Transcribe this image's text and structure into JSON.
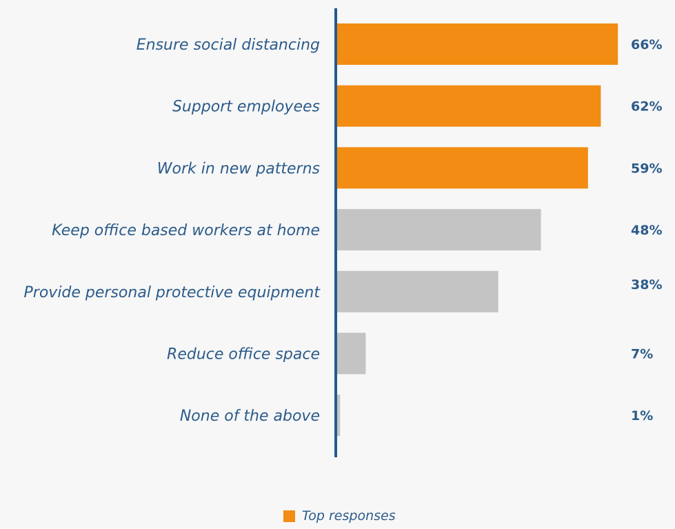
{
  "colors": {
    "top": "#f28c13",
    "other": "#c4c4c4",
    "text": "#2b5b8a",
    "axis": "#245b8b"
  },
  "legend": {
    "label": "Top responses"
  },
  "chart_data": {
    "type": "bar",
    "orientation": "horizontal",
    "categories": [
      "Ensure social distancing",
      "Support employees",
      "Work in new patterns",
      "Keep office based workers at home",
      "Provide personal protective equipment",
      "Reduce office space",
      "None of the above"
    ],
    "values": [
      66,
      62,
      59,
      48,
      38,
      7,
      1
    ],
    "value_labels": [
      "66%",
      "62%",
      "59%",
      "48%",
      "38%",
      "7%",
      "1%"
    ],
    "top_response": [
      true,
      true,
      true,
      false,
      false,
      false,
      false
    ],
    "xlim": [
      0,
      100
    ],
    "title": "",
    "xlabel": "",
    "ylabel": "",
    "grid": false,
    "legend_position": "bottom-center"
  }
}
